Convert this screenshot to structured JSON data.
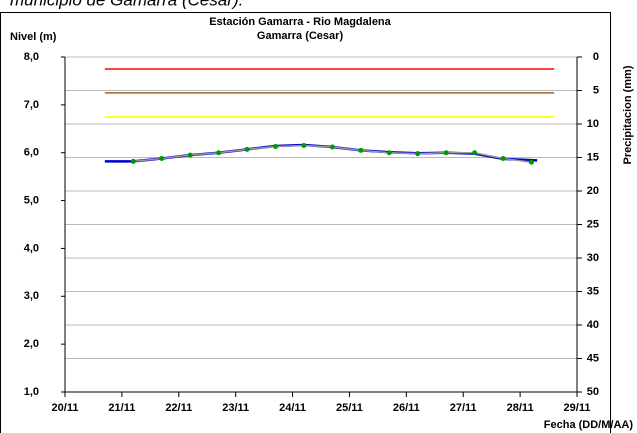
{
  "header": "municipio de Gamarra (Cesar).",
  "chart_data": {
    "type": "line",
    "title": "Estación Gamarra - Rio Magdalena",
    "subtitle": "Gamarra (Cesar)",
    "y_label": "Nivel (m)",
    "y2_label": "Precipitacion (mm)",
    "x_label": "Fecha (DD/M/AA)",
    "xlim": [
      20,
      29
    ],
    "xticks": [
      {
        "value": 20,
        "label": "20/11"
      },
      {
        "value": 21,
        "label": "21/11"
      },
      {
        "value": 22,
        "label": "22/11"
      },
      {
        "value": 23,
        "label": "23/11"
      },
      {
        "value": 24,
        "label": "24/11"
      },
      {
        "value": 25,
        "label": "25/11"
      },
      {
        "value": 26,
        "label": "26/11"
      },
      {
        "value": 27,
        "label": "27/11"
      },
      {
        "value": 28,
        "label": "28/11"
      },
      {
        "value": 29,
        "label": "29/11"
      }
    ],
    "ylim": [
      1,
      8
    ],
    "yticks": [
      {
        "value": 1,
        "label": "1,0"
      },
      {
        "value": 2,
        "label": "2,0"
      },
      {
        "value": 3,
        "label": "3,0"
      },
      {
        "value": 4,
        "label": "4,0"
      },
      {
        "value": 5,
        "label": "5,0"
      },
      {
        "value": 6,
        "label": "6,0"
      },
      {
        "value": 7,
        "label": "7,0"
      },
      {
        "value": 8,
        "label": "8,0"
      }
    ],
    "y2lim": [
      50,
      0
    ],
    "y2ticks": [
      0,
      5,
      10,
      15,
      20,
      25,
      30,
      35,
      40,
      45,
      50
    ],
    "grid": true,
    "series": [
      {
        "color": "#ff0000",
        "width": 1.5,
        "x": [
          20.7,
          28.6
        ],
        "values": [
          7.75,
          7.75
        ]
      },
      {
        "color": "#996633",
        "width": 1.5,
        "x": [
          20.7,
          28.6
        ],
        "values": [
          7.25,
          7.25
        ]
      },
      {
        "color": "#ffff00",
        "width": 1.5,
        "x": [
          20.7,
          28.6
        ],
        "values": [
          6.75,
          6.75
        ]
      },
      {
        "color": "#0000cc",
        "width": 2.5,
        "x": [
          20.7,
          21.2,
          21.7,
          22.2,
          22.7,
          23.2,
          23.7,
          24.2,
          24.7,
          25.2,
          25.7,
          26.2,
          26.7,
          27.2,
          27.7,
          28.3
        ],
        "values": [
          5.82,
          5.82,
          5.88,
          5.95,
          6.0,
          6.07,
          6.14,
          6.16,
          6.12,
          6.05,
          6.01,
          5.99,
          6.0,
          5.98,
          5.87,
          5.84
        ]
      },
      {
        "color": "#999999",
        "width": 1.5,
        "x": [
          21.2,
          21.7,
          22.2,
          22.7,
          23.2,
          23.7,
          24.2,
          24.7,
          25.2,
          25.7,
          26.2,
          26.7,
          27.2,
          27.7,
          28.2
        ],
        "values": [
          5.82,
          5.88,
          5.95,
          6.0,
          6.07,
          6.13,
          6.15,
          6.12,
          6.05,
          6.0,
          5.98,
          6.0,
          6.0,
          5.88,
          5.8
        ],
        "markers": true,
        "marker_color": "#009900"
      }
    ]
  }
}
